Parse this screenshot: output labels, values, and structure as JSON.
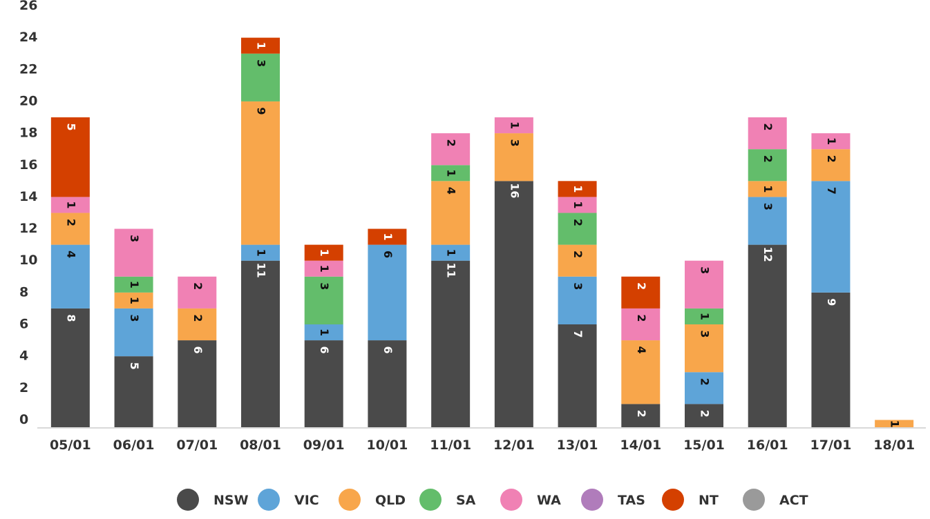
{
  "chart_data": {
    "type": "bar",
    "stacked": true,
    "categories": [
      "05/01",
      "06/01",
      "07/01",
      "08/01",
      "09/01",
      "10/01",
      "11/01",
      "12/01",
      "13/01",
      "14/01",
      "15/01",
      "16/01",
      "17/01",
      "18/01"
    ],
    "series": [
      {
        "name": "NSW",
        "color": "#4a4a4a",
        "label_color": "#ffffff",
        "values": [
          8,
          5,
          6,
          11,
          6,
          6,
          11,
          16,
          7,
          2,
          2,
          12,
          9,
          0
        ]
      },
      {
        "name": "VIC",
        "color": "#5ea4d8",
        "label_color": "#111111",
        "values": [
          4,
          3,
          0,
          1,
          1,
          6,
          1,
          0,
          3,
          0,
          2,
          3,
          7,
          0
        ]
      },
      {
        "name": "QLD",
        "color": "#f8a64b",
        "label_color": "#111111",
        "values": [
          2,
          1,
          2,
          9,
          0,
          0,
          4,
          3,
          2,
          4,
          3,
          1,
          2,
          1
        ]
      },
      {
        "name": "SA",
        "color": "#63bd6b",
        "label_color": "#111111",
        "values": [
          0,
          1,
          0,
          3,
          3,
          0,
          1,
          0,
          2,
          0,
          1,
          2,
          0,
          0
        ]
      },
      {
        "name": "WA",
        "color": "#f081b4",
        "label_color": "#111111",
        "values": [
          1,
          3,
          2,
          0,
          1,
          0,
          2,
          1,
          1,
          2,
          3,
          2,
          1,
          0
        ]
      },
      {
        "name": "TAS",
        "color": "#b07cbb",
        "label_color": "#ffffff",
        "values": [
          0,
          0,
          0,
          0,
          0,
          0,
          0,
          0,
          0,
          0,
          0,
          0,
          0,
          0
        ]
      },
      {
        "name": "NT",
        "color": "#d44000",
        "label_color": "#ffffff",
        "values": [
          5,
          0,
          0,
          1,
          1,
          1,
          0,
          0,
          1,
          2,
          0,
          0,
          0,
          0
        ]
      },
      {
        "name": "ACT",
        "color": "#9a9a9a",
        "label_color": "#111111",
        "values": [
          0,
          0,
          0,
          0,
          0,
          0,
          0,
          0,
          0,
          0,
          0,
          0,
          0,
          0
        ]
      }
    ],
    "yticks": [
      0,
      2,
      4,
      6,
      8,
      10,
      12,
      14,
      16,
      18,
      20,
      22,
      24,
      26
    ],
    "ylim": [
      0,
      26
    ],
    "grid": false,
    "legend_position": "bottom-center",
    "title": "",
    "xlabel": "",
    "ylabel": ""
  }
}
